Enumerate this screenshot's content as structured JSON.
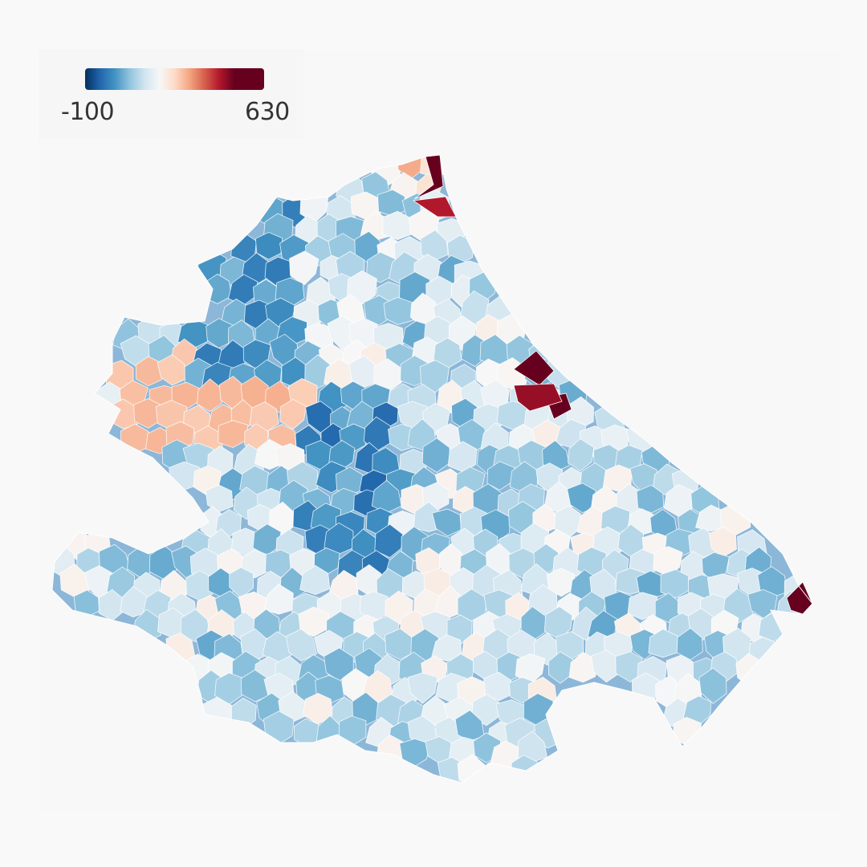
{
  "legend": {
    "min_label": "-100",
    "max_label": "630",
    "min": -100,
    "max": 630,
    "colors": [
      "#053061",
      "#2166ac",
      "#4393c3",
      "#92c5de",
      "#d1e5f0",
      "#f7f7f7",
      "#fddbc7",
      "#f4a582",
      "#d6604d",
      "#b2182b",
      "#67001f",
      "#67001f",
      "#67001f"
    ]
  },
  "colors": {
    "background": "#f9f9f9",
    "panel": "#f8f8f8",
    "border": "#ffffff"
  }
}
